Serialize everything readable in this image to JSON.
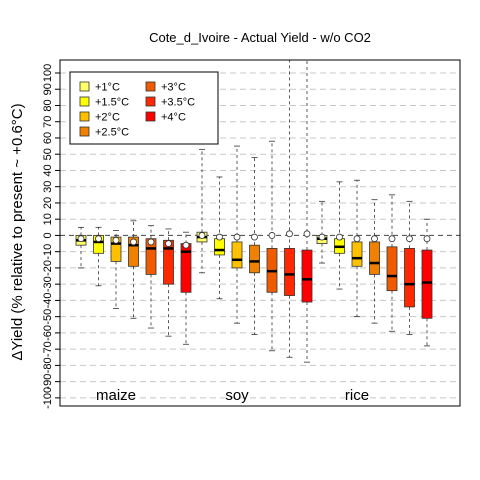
{
  "chart_data": {
    "type": "boxplot",
    "title": "Cote_d_Ivoire - Actual Yield - w/o CO2",
    "ylabel": "ΔYield (% relative to present ~ +0.6°C)",
    "ylim": [
      -105,
      108
    ],
    "yticks": [
      -100,
      -90,
      -80,
      -70,
      -60,
      -50,
      -40,
      -30,
      -20,
      -10,
      0,
      10,
      20,
      30,
      40,
      50,
      60,
      70,
      80,
      90,
      100
    ],
    "grid": "horizontal-dashed",
    "legend_position": "top-left",
    "legend": [
      {
        "label": "+1°C",
        "color": "#FFFF66"
      },
      {
        "label": "+1.5°C",
        "color": "#FFFF00"
      },
      {
        "label": "+2°C",
        "color": "#FFC000"
      },
      {
        "label": "+2.5°C",
        "color": "#F08000"
      },
      {
        "label": "+3°C",
        "color": "#F05A00"
      },
      {
        "label": "+3.5°C",
        "color": "#FF2800"
      },
      {
        "label": "+4°C",
        "color": "#FF0000"
      }
    ],
    "crops": [
      {
        "name": "maize",
        "boxes": [
          {
            "level": "+1°C",
            "wlo": -20,
            "q1": -6,
            "median": -3,
            "q3": 0,
            "whi": 5,
            "mean": -2
          },
          {
            "level": "+1.5°C",
            "wlo": -31,
            "q1": -11,
            "median": -4,
            "q3": 0,
            "whi": 5,
            "mean": -2
          },
          {
            "level": "+2°C",
            "wlo": -45,
            "q1": -16,
            "median": -5,
            "q3": -1,
            "whi": 3,
            "mean": -3
          },
          {
            "level": "+2.5°C",
            "wlo": -51,
            "q1": -19,
            "median": -6,
            "q3": -1,
            "whi": 9,
            "mean": -4
          },
          {
            "level": "+3°C",
            "wlo": -57,
            "q1": -24,
            "median": -8,
            "q3": -2,
            "whi": 6,
            "mean": -4
          },
          {
            "level": "+3.5°C",
            "wlo": -62,
            "q1": -30,
            "median": -8,
            "q3": -3,
            "whi": 4,
            "mean": -5
          },
          {
            "level": "+4°C",
            "wlo": -67,
            "q1": -35,
            "median": -10,
            "q3": -5,
            "whi": 2,
            "mean": -6
          }
        ]
      },
      {
        "name": "soy",
        "boxes": [
          {
            "level": "+1°C",
            "wlo": -23,
            "q1": -4,
            "median": -1,
            "q3": 2,
            "whi": 53,
            "mean": 0
          },
          {
            "level": "+1.5°C",
            "wlo": -39,
            "q1": -12,
            "median": -9,
            "q3": -2,
            "whi": 36,
            "mean": -1
          },
          {
            "level": "+2°C",
            "wlo": -54,
            "q1": -20,
            "median": -15,
            "q3": -4,
            "whi": 55,
            "mean": -1
          },
          {
            "level": "+2.5°C",
            "wlo": -61,
            "q1": -23,
            "median": -16,
            "q3": -6,
            "whi": 48,
            "mean": -1
          },
          {
            "level": "+3°C",
            "wlo": -71,
            "q1": -35,
            "median": -22,
            "q3": -8,
            "whi": 58,
            "mean": 0
          },
          {
            "level": "+3.5°C",
            "wlo": -75,
            "q1": -37,
            "median": -24,
            "q3": -8,
            "whi": 108,
            "mean": 1
          },
          {
            "level": "+4°C",
            "wlo": -78,
            "q1": -41,
            "median": -27,
            "q3": -9,
            "whi": 108,
            "mean": 1
          }
        ]
      },
      {
        "name": "rice",
        "boxes": [
          {
            "level": "+1°C",
            "wlo": -17,
            "q1": -5,
            "median": -2,
            "q3": 0,
            "whi": 21,
            "mean": -1
          },
          {
            "level": "+1.5°C",
            "wlo": -33,
            "q1": -11,
            "median": -7,
            "q3": -2,
            "whi": 33,
            "mean": -1
          },
          {
            "level": "+2°C",
            "wlo": -50,
            "q1": -19,
            "median": -14,
            "q3": -4,
            "whi": 34,
            "mean": -2
          },
          {
            "level": "+2.5°C",
            "wlo": -54,
            "q1": -24,
            "median": -17,
            "q3": -4,
            "whi": 22,
            "mean": -2
          },
          {
            "level": "+3°C",
            "wlo": -59,
            "q1": -34,
            "median": -25,
            "q3": -7,
            "whi": 25,
            "mean": -2
          },
          {
            "level": "+3.5°C",
            "wlo": -61,
            "q1": -44,
            "median": -30,
            "q3": -8,
            "whi": 21,
            "mean": -2
          },
          {
            "level": "+4°C",
            "wlo": -68,
            "q1": -51,
            "median": -29,
            "q3": -9,
            "whi": 10,
            "mean": -2
          }
        ]
      }
    ]
  }
}
